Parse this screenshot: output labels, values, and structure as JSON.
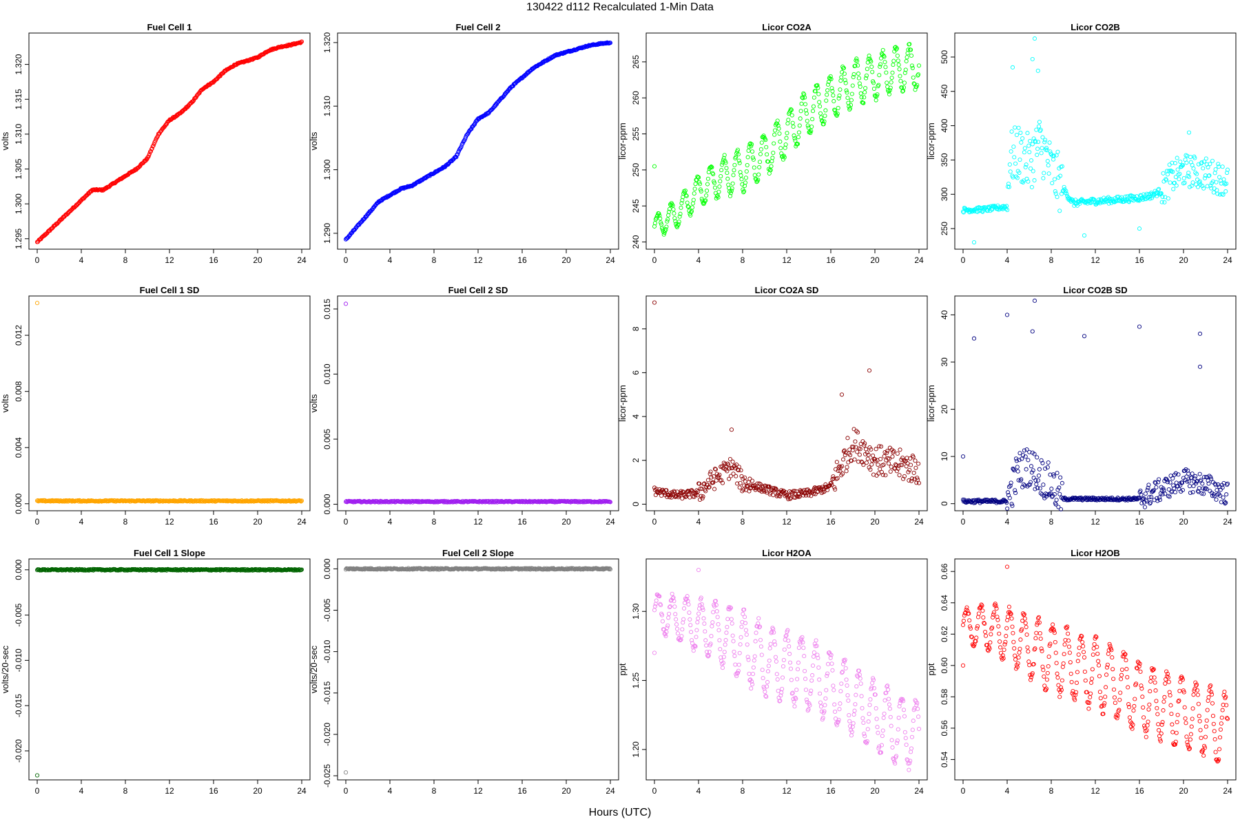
{
  "figure": {
    "title": "130422   d112   Recalculated 1-Min Data",
    "xlabel": "Hours (UTC)"
  },
  "chart_data": [
    {
      "type": "scatter",
      "title": "Fuel Cell 1",
      "ylabel": "volts",
      "color": "#ff0000",
      "xlim": [
        0,
        24
      ],
      "ylim": [
        1.2935,
        1.3245
      ],
      "yticks": [
        1.295,
        1.3,
        1.305,
        1.31,
        1.315,
        1.32
      ],
      "ytick_labels": [
        "1.295",
        "1.300",
        "1.305",
        "1.310",
        "1.315",
        "1.320"
      ],
      "xticks": [
        0,
        4,
        8,
        12,
        16,
        20,
        24
      ],
      "trend": [
        [
          0,
          1.2945
        ],
        [
          1,
          1.296
        ],
        [
          2,
          1.2975
        ],
        [
          3,
          1.299
        ],
        [
          4,
          1.3005
        ],
        [
          5,
          1.302
        ],
        [
          6,
          1.302
        ],
        [
          7,
          1.303
        ],
        [
          8,
          1.304
        ],
        [
          9,
          1.305
        ],
        [
          10,
          1.3065
        ],
        [
          11,
          1.31
        ],
        [
          12,
          1.312
        ],
        [
          13,
          1.313
        ],
        [
          14,
          1.3145
        ],
        [
          15,
          1.3165
        ],
        [
          16,
          1.3175
        ],
        [
          17,
          1.319
        ],
        [
          18,
          1.32
        ],
        [
          19,
          1.3205
        ],
        [
          20,
          1.321
        ],
        [
          21,
          1.322
        ],
        [
          22,
          1.3225
        ],
        [
          23,
          1.3228
        ],
        [
          24,
          1.3232
        ]
      ],
      "outliers": []
    },
    {
      "type": "scatter",
      "title": "Fuel Cell 2",
      "ylabel": "volts",
      "color": "#0000ff",
      "xlim": [
        0,
        24
      ],
      "ylim": [
        1.2875,
        1.3215
      ],
      "yticks": [
        1.29,
        1.3,
        1.31,
        1.32
      ],
      "ytick_labels": [
        "1.290",
        "1.300",
        "1.310",
        "1.320"
      ],
      "xticks": [
        0,
        4,
        8,
        12,
        16,
        20,
        24
      ],
      "trend": [
        [
          0,
          1.289
        ],
        [
          1,
          1.291
        ],
        [
          2,
          1.293
        ],
        [
          3,
          1.295
        ],
        [
          4,
          1.296
        ],
        [
          5,
          1.297
        ],
        [
          6,
          1.2975
        ],
        [
          7,
          1.2985
        ],
        [
          8,
          1.2995
        ],
        [
          9,
          1.3005
        ],
        [
          10,
          1.302
        ],
        [
          11,
          1.3055
        ],
        [
          12,
          1.308
        ],
        [
          13,
          1.309
        ],
        [
          14,
          1.311
        ],
        [
          15,
          1.313
        ],
        [
          16,
          1.3145
        ],
        [
          17,
          1.316
        ],
        [
          18,
          1.317
        ],
        [
          19,
          1.318
        ],
        [
          20,
          1.3185
        ],
        [
          21,
          1.319
        ],
        [
          22,
          1.3195
        ],
        [
          23,
          1.3198
        ],
        [
          24,
          1.32
        ]
      ],
      "outliers": []
    },
    {
      "type": "scatter",
      "title": "Licor CO2A",
      "ylabel": "licor-ppm",
      "color": "#00ff00",
      "xlim": [
        0,
        24
      ],
      "ylim": [
        239,
        269
      ],
      "yticks": [
        240,
        245,
        250,
        255,
        260,
        265
      ],
      "ytick_labels": [
        "240",
        "245",
        "250",
        "255",
        "260",
        "265"
      ],
      "xticks": [
        0,
        4,
        8,
        12,
        16,
        20,
        24
      ],
      "trend": [
        [
          0,
          242
        ],
        [
          2,
          244
        ],
        [
          4,
          247
        ],
        [
          6,
          249
        ],
        [
          8,
          250
        ],
        [
          10,
          252
        ],
        [
          12,
          255
        ],
        [
          14,
          258
        ],
        [
          16,
          260
        ],
        [
          18,
          262
        ],
        [
          20,
          263
        ],
        [
          22,
          264
        ],
        [
          24,
          264.5
        ]
      ],
      "osc_amp": 3,
      "osc_period": 1.2,
      "outliers": [
        [
          0,
          250.5
        ]
      ]
    },
    {
      "type": "scatter",
      "title": "Licor CO2B",
      "ylabel": "licor-ppm",
      "color": "#00ffff",
      "xlim": [
        0,
        24
      ],
      "ylim": [
        220,
        535
      ],
      "yticks": [
        250,
        300,
        350,
        400,
        450,
        500
      ],
      "ytick_labels": [
        "250",
        "300",
        "350",
        "400",
        "450",
        "500"
      ],
      "xticks": [
        0,
        4,
        8,
        12,
        16,
        20,
        24
      ],
      "trend": [
        [
          0,
          277
        ],
        [
          2,
          278
        ],
        [
          4,
          282
        ],
        [
          4.2,
          350
        ],
        [
          5,
          360
        ],
        [
          6,
          345
        ],
        [
          7,
          375
        ],
        [
          8,
          335
        ],
        [
          9,
          310
        ],
        [
          10,
          287
        ],
        [
          12,
          290
        ],
        [
          14,
          292
        ],
        [
          16,
          295
        ],
        [
          17,
          298
        ],
        [
          18,
          305
        ],
        [
          19,
          325
        ],
        [
          20,
          335
        ],
        [
          22,
          330
        ],
        [
          24,
          320
        ]
      ],
      "scatter_spread": [
        [
          0,
          4,
          6
        ],
        [
          4,
          9,
          70
        ],
        [
          9,
          18,
          8
        ],
        [
          18,
          24,
          40
        ]
      ],
      "outliers": [
        [
          6.5,
          527
        ],
        [
          6.3,
          497
        ],
        [
          4.5,
          485
        ],
        [
          6.8,
          480
        ],
        [
          1,
          230
        ],
        [
          11,
          240
        ],
        [
          16,
          250
        ],
        [
          20.5,
          390
        ]
      ]
    },
    {
      "type": "scatter",
      "title": "Fuel Cell 1 SD",
      "ylabel": "volts",
      "color": "#ffa500",
      "xlim": [
        0,
        24
      ],
      "ylim": [
        -0.0005,
        0.0148
      ],
      "yticks": [
        0.0,
        0.004,
        0.008,
        0.012
      ],
      "ytick_labels": [
        "0.000",
        "0.004",
        "0.008",
        "0.012"
      ],
      "xticks": [
        0,
        4,
        8,
        12,
        16,
        20,
        24
      ],
      "trend": [
        [
          0,
          0.0002
        ],
        [
          24,
          0.0002
        ]
      ],
      "outliers": [
        [
          0,
          0.0143
        ]
      ]
    },
    {
      "type": "scatter",
      "title": "Fuel Cell 2 SD",
      "ylabel": "volts",
      "color": "#a020f0",
      "xlim": [
        0,
        24
      ],
      "ylim": [
        -0.0005,
        0.016
      ],
      "yticks": [
        0.0,
        0.005,
        0.01,
        0.015
      ],
      "ytick_labels": [
        "0.000",
        "0.005",
        "0.010",
        "0.015"
      ],
      "xticks": [
        0,
        4,
        8,
        12,
        16,
        20,
        24
      ],
      "trend": [
        [
          0,
          0.0002
        ],
        [
          24,
          0.0002
        ]
      ],
      "outliers": [
        [
          0,
          0.0154
        ]
      ]
    },
    {
      "type": "scatter",
      "title": "Licor CO2A SD",
      "ylabel": "licor-ppm",
      "color": "#8b0000",
      "xlim": [
        0,
        24
      ],
      "ylim": [
        -0.3,
        9.5
      ],
      "yticks": [
        0,
        2,
        4,
        6,
        8
      ],
      "ytick_labels": [
        "0",
        "2",
        "4",
        "6",
        "8"
      ],
      "xticks": [
        0,
        4,
        8,
        12,
        16,
        20,
        24
      ],
      "trend": [
        [
          0,
          0.6
        ],
        [
          2,
          0.4
        ],
        [
          4,
          0.5
        ],
        [
          5,
          1.0
        ],
        [
          7,
          1.7
        ],
        [
          8,
          1.0
        ],
        [
          10,
          0.7
        ],
        [
          12,
          0.4
        ],
        [
          14,
          0.5
        ],
        [
          16,
          0.8
        ],
        [
          17,
          1.8
        ],
        [
          18,
          2.8
        ],
        [
          19,
          2.5
        ],
        [
          20,
          2.0
        ],
        [
          22,
          1.8
        ],
        [
          24,
          1.6
        ]
      ],
      "scatter_spread": [
        [
          0,
          4,
          0.3
        ],
        [
          4,
          9,
          0.8
        ],
        [
          9,
          16,
          0.3
        ],
        [
          16,
          24,
          1.2
        ]
      ],
      "outliers": [
        [
          0,
          9.2
        ],
        [
          19.5,
          6.1
        ],
        [
          17,
          5.0
        ],
        [
          7,
          3.4
        ]
      ]
    },
    {
      "type": "scatter",
      "title": "Licor CO2B SD",
      "ylabel": "licor-ppm",
      "color": "#000080",
      "xlim": [
        0,
        24
      ],
      "ylim": [
        -1.5,
        44
      ],
      "yticks": [
        0,
        10,
        20,
        30,
        40
      ],
      "ytick_labels": [
        "0",
        "10",
        "20",
        "30",
        "40"
      ],
      "xticks": [
        0,
        4,
        8,
        12,
        16,
        20,
        24
      ],
      "trend": [
        [
          0,
          0.5
        ],
        [
          4,
          0.5
        ],
        [
          5,
          7
        ],
        [
          6,
          8
        ],
        [
          7,
          6
        ],
        [
          8,
          4
        ],
        [
          9,
          1
        ],
        [
          16,
          1
        ],
        [
          18,
          3
        ],
        [
          20,
          5
        ],
        [
          22,
          4
        ],
        [
          24,
          2
        ]
      ],
      "scatter_spread": [
        [
          0,
          4,
          0.6
        ],
        [
          4,
          9,
          7
        ],
        [
          9,
          16,
          0.5
        ],
        [
          16,
          24,
          4
        ]
      ],
      "outliers": [
        [
          6.5,
          43
        ],
        [
          4,
          40
        ],
        [
          1,
          35
        ],
        [
          16,
          37.5
        ],
        [
          21.5,
          36
        ],
        [
          11,
          35.5
        ],
        [
          6.3,
          36.5
        ],
        [
          21.5,
          29
        ],
        [
          0,
          10
        ]
      ]
    },
    {
      "type": "scatter",
      "title": "Fuel Cell 1 Slope",
      "ylabel": "volts/20-sec",
      "color": "#006400",
      "xlim": [
        0,
        24
      ],
      "ylim": [
        -0.0232,
        0.0012
      ],
      "yticks": [
        0.0,
        -0.005,
        -0.01,
        -0.015,
        -0.02
      ],
      "ytick_labels": [
        "0.000",
        "-0.005",
        "-0.010",
        "-0.015",
        "-0.020"
      ],
      "xticks": [
        0,
        4,
        8,
        12,
        16,
        20,
        24
      ],
      "trend": [
        [
          0,
          0
        ],
        [
          24,
          0
        ]
      ],
      "outliers": [
        [
          0,
          -0.0227
        ]
      ]
    },
    {
      "type": "scatter",
      "title": "Fuel Cell 2 Slope",
      "ylabel": "volts/20-sec",
      "color": "#808080",
      "xlim": [
        0,
        24
      ],
      "ylim": [
        -0.0255,
        0.0012
      ],
      "yticks": [
        0.0,
        -0.005,
        -0.01,
        -0.015,
        -0.02,
        -0.025
      ],
      "ytick_labels": [
        "0.000",
        "-0.005",
        "-0.010",
        "-0.015",
        "-0.020",
        "-0.025"
      ],
      "xticks": [
        0,
        4,
        8,
        12,
        16,
        20,
        24
      ],
      "trend": [
        [
          0,
          0
        ],
        [
          24,
          0
        ]
      ],
      "outliers": [
        [
          0,
          -0.0246
        ]
      ]
    },
    {
      "type": "scatter",
      "title": "Licor H2OA",
      "ylabel": "ppt",
      "color": "#ee82ee",
      "xlim": [
        0,
        24
      ],
      "ylim": [
        1.178,
        1.338
      ],
      "yticks": [
        1.2,
        1.25,
        1.3
      ],
      "ytick_labels": [
        "1.20",
        "1.25",
        "1.30"
      ],
      "xticks": [
        0,
        4,
        8,
        12,
        16,
        20,
        24
      ],
      "trend": [
        [
          0,
          1.3
        ],
        [
          2,
          1.295
        ],
        [
          4,
          1.29
        ],
        [
          6,
          1.285
        ],
        [
          8,
          1.275
        ],
        [
          10,
          1.265
        ],
        [
          12,
          1.26
        ],
        [
          14,
          1.255
        ],
        [
          16,
          1.245
        ],
        [
          18,
          1.235
        ],
        [
          20,
          1.225
        ],
        [
          22,
          1.215
        ],
        [
          24,
          1.21
        ]
      ],
      "osc_amp": 0.025,
      "osc_period": 1.3,
      "outliers": [
        [
          0,
          1.27
        ],
        [
          4,
          1.33
        ]
      ]
    },
    {
      "type": "scatter",
      "title": "Licor H2OB",
      "ylabel": "ppt",
      "color": "#ff0000",
      "xlim": [
        0,
        24
      ],
      "ylim": [
        0.527,
        0.668
      ],
      "yticks": [
        0.54,
        0.56,
        0.58,
        0.6,
        0.62,
        0.64,
        0.66
      ],
      "ytick_labels": [
        "0.54",
        "0.56",
        "0.58",
        "0.60",
        "0.62",
        "0.64",
        "0.66"
      ],
      "xticks": [
        0,
        4,
        8,
        12,
        16,
        20,
        24
      ],
      "trend": [
        [
          0,
          0.625
        ],
        [
          2,
          0.625
        ],
        [
          4,
          0.62
        ],
        [
          6,
          0.612
        ],
        [
          8,
          0.605
        ],
        [
          10,
          0.6
        ],
        [
          12,
          0.595
        ],
        [
          14,
          0.588
        ],
        [
          16,
          0.58
        ],
        [
          18,
          0.575
        ],
        [
          20,
          0.57
        ],
        [
          22,
          0.565
        ],
        [
          24,
          0.558
        ]
      ],
      "osc_amp": 0.022,
      "osc_period": 1.3,
      "outliers": [
        [
          4,
          0.663
        ],
        [
          0,
          0.6
        ]
      ]
    }
  ]
}
